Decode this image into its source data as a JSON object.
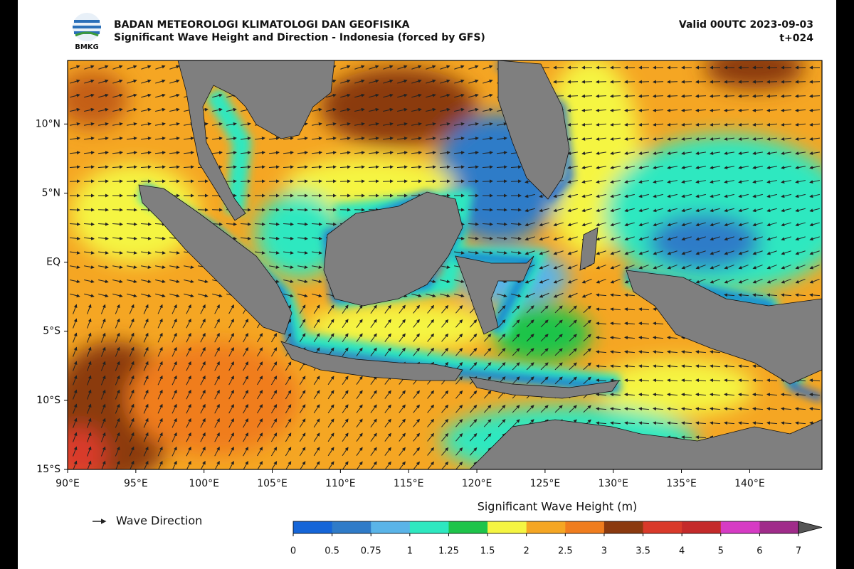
{
  "header": {
    "logo": "BMKG",
    "agency": "BADAN METEOROLOGI KLIMATOLOGI DAN GEOFISIKA",
    "title": "Significant Wave Height and Direction - Indonesia (forced by GFS)",
    "valid": "Valid 00UTC 2023-09-03",
    "lead": "t+024"
  },
  "map": {
    "lonlim": [
      90,
      145.3
    ],
    "latlim": [
      -15,
      14.6
    ],
    "lonticks": [
      {
        "value": 90,
        "label": "90°E"
      },
      {
        "value": 95,
        "label": "95°E"
      },
      {
        "value": 100,
        "label": "100°E"
      },
      {
        "value": 105,
        "label": "105°E"
      },
      {
        "value": 110,
        "label": "110°E"
      },
      {
        "value": 115,
        "label": "115°E"
      },
      {
        "value": 120,
        "label": "120°E"
      },
      {
        "value": 125,
        "label": "125°E"
      },
      {
        "value": 130,
        "label": "130°E"
      },
      {
        "value": 135,
        "label": "135°E"
      },
      {
        "value": 140,
        "label": "140°E"
      }
    ],
    "latticks": [
      {
        "value": 10,
        "label": "10°N"
      },
      {
        "value": 5,
        "label": "5°N"
      },
      {
        "value": 0,
        "label": "EQ"
      },
      {
        "value": -5,
        "label": "5°S"
      },
      {
        "value": -10,
        "label": "10°S"
      },
      {
        "value": -15,
        "label": "15°S"
      }
    ]
  },
  "legend": {
    "arrow_label": "Wave Direction"
  },
  "colorbar": {
    "title": "Significant Wave Height (m)",
    "ticks": [
      0,
      0.5,
      0.75,
      1,
      1.25,
      1.5,
      2,
      2.5,
      3,
      3.5,
      4,
      5,
      6,
      7
    ],
    "colors": [
      "#1565d8",
      "#2f7bc8",
      "#5ab4e8",
      "#2ee8c0",
      "#1ec44a",
      "#f5f542",
      "#f5a623",
      "#f07d1e",
      "#8b3a0f",
      "#d93a2a",
      "#c42a2a",
      "#d63bc4",
      "#a02c8a"
    ],
    "extend_color": "#555555"
  }
}
